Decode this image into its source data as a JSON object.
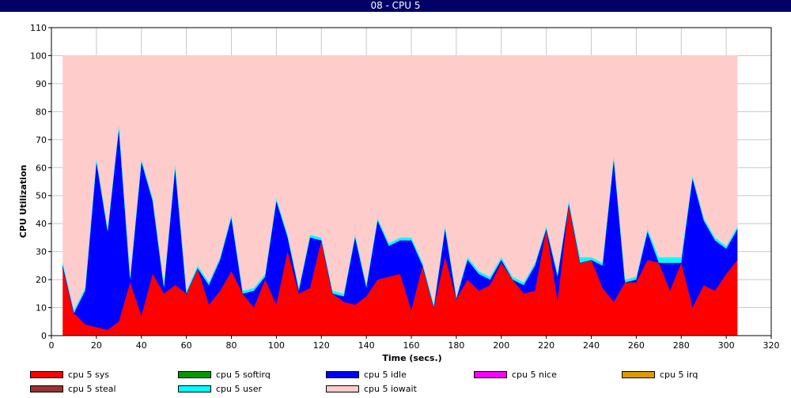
{
  "window": {
    "title": "08 - CPU 5"
  },
  "chart_data": {
    "type": "area",
    "stacked": true,
    "title": "",
    "xlabel": "Time (secs.)",
    "ylabel": "CPU Utilization",
    "xlim": [
      0,
      320
    ],
    "ylim": [
      0,
      110
    ],
    "xticks": [
      0,
      20,
      40,
      60,
      80,
      100,
      120,
      140,
      160,
      180,
      200,
      220,
      240,
      260,
      280,
      300,
      320
    ],
    "yticks": [
      0,
      10,
      20,
      30,
      40,
      50,
      60,
      70,
      80,
      90,
      100,
      110
    ],
    "grid": true,
    "legend_position": "bottom",
    "x": [
      5,
      10,
      15,
      20,
      25,
      30,
      35,
      40,
      45,
      50,
      55,
      60,
      65,
      70,
      75,
      80,
      85,
      90,
      95,
      100,
      105,
      110,
      115,
      120,
      125,
      130,
      135,
      140,
      145,
      150,
      155,
      160,
      165,
      170,
      175,
      180,
      185,
      190,
      195,
      200,
      205,
      210,
      215,
      220,
      225,
      230,
      235,
      240,
      245,
      250,
      255,
      260,
      265,
      270,
      275,
      280,
      285,
      290,
      295,
      300,
      305
    ],
    "series": [
      {
        "name": "cpu 5 sys",
        "color": "#ff0000",
        "values": [
          24,
          8,
          4,
          3,
          2,
          5,
          19,
          7,
          22,
          15,
          18,
          15,
          24,
          11,
          16,
          23,
          15,
          10,
          20,
          11,
          30,
          15,
          17,
          34,
          15,
          12,
          11,
          14,
          20,
          21,
          22,
          9,
          25,
          10,
          28,
          13,
          20,
          16,
          18,
          26,
          20,
          15,
          16,
          38,
          12,
          47,
          26,
          27,
          17,
          12,
          19,
          19,
          27,
          26,
          16,
          26,
          10,
          18,
          16,
          22,
          27
        ]
      },
      {
        "name": "cpu 5 softirq",
        "color": "#009900",
        "values": [
          0,
          0,
          0,
          0,
          0,
          0,
          0,
          0,
          0,
          0,
          0,
          0,
          0,
          0,
          0,
          0,
          0,
          0,
          0,
          0,
          0,
          0,
          0,
          0,
          0,
          0,
          0,
          0,
          0,
          0,
          0,
          0,
          0,
          0,
          0,
          0,
          0,
          0,
          0,
          0,
          0,
          0,
          0,
          0,
          0,
          0,
          0,
          0,
          0,
          0,
          0,
          0,
          0,
          0,
          0,
          0,
          0,
          0,
          0,
          0,
          0
        ]
      },
      {
        "name": "cpu 5 idle",
        "color": "#0000ff",
        "values": [
          1,
          0,
          12,
          59,
          35,
          69,
          1,
          55,
          26,
          2,
          42,
          0,
          0,
          7,
          11,
          19,
          0,
          6,
          1,
          37,
          5,
          1,
          18,
          0,
          0,
          2,
          24,
          3,
          21,
          11,
          12,
          25,
          0,
          0,
          10,
          0,
          7,
          6,
          2,
          1,
          0,
          3,
          9,
          0,
          9,
          0,
          0,
          0,
          8,
          51,
          0,
          1,
          10,
          0,
          10,
          0,
          46,
          23,
          18,
          9,
          11
        ]
      },
      {
        "name": "cpu 5 nice",
        "color": "#ff00ff",
        "values": [
          0,
          0,
          0,
          0,
          0,
          0,
          0,
          0,
          0,
          0,
          0,
          0,
          0,
          0,
          0,
          0,
          0,
          0,
          0,
          0,
          0,
          0,
          0,
          0,
          0,
          0,
          0,
          0,
          0,
          0,
          0,
          0,
          0,
          0,
          0,
          0,
          0,
          0,
          0,
          0,
          0,
          0,
          0,
          0,
          0,
          0,
          0,
          0,
          0,
          0,
          0,
          0,
          0,
          0,
          0,
          0,
          0,
          0,
          0,
          0,
          0
        ]
      },
      {
        "name": "cpu 5 irq",
        "color": "#dd9900",
        "values": [
          0,
          0,
          0,
          0,
          0,
          0,
          0,
          0,
          0,
          0,
          0,
          0,
          0,
          0,
          0,
          0,
          0,
          0,
          0,
          0,
          0,
          0,
          0,
          0,
          0,
          0,
          0,
          0,
          0,
          0,
          0,
          0,
          0,
          0,
          0,
          0,
          0,
          0,
          0,
          0,
          0,
          0,
          0,
          0,
          0,
          0,
          0,
          0,
          0,
          0,
          0,
          0,
          0,
          0,
          0,
          0,
          0,
          0,
          0,
          0,
          0
        ]
      },
      {
        "name": "cpu 5 steal",
        "color": "#993333",
        "values": [
          0,
          0,
          0,
          0,
          0,
          0,
          0,
          0,
          0,
          0,
          0,
          0,
          0,
          0,
          0,
          0,
          0,
          0,
          0,
          0,
          0,
          0,
          0,
          0,
          0,
          0,
          0,
          0,
          0,
          0,
          0,
          0,
          0,
          0,
          0,
          0,
          0,
          0,
          0,
          0,
          0,
          0,
          0,
          0,
          0,
          0,
          0,
          0,
          0,
          0,
          0,
          0,
          0,
          0,
          0,
          0,
          0,
          0,
          0,
          0,
          0
        ]
      },
      {
        "name": "cpu 5 user",
        "color": "#00ffff",
        "values": [
          1,
          1,
          1,
          1,
          1,
          1,
          1,
          1,
          1,
          1,
          1,
          1,
          1,
          1,
          1,
          1,
          1,
          1,
          1,
          1,
          1,
          1,
          1,
          1,
          1,
          1,
          1,
          1,
          1,
          1,
          1,
          1,
          1,
          1,
          1,
          1,
          1,
          1,
          1,
          1,
          1,
          1,
          1,
          1,
          1,
          1,
          2,
          1,
          1,
          1,
          1,
          1,
          1,
          2,
          2,
          2,
          1,
          1,
          1,
          1,
          1
        ]
      },
      {
        "name": "cpu 5 iowait",
        "color": "#ffcccc",
        "values": [
          74,
          91,
          83,
          37,
          62,
          25,
          79,
          37,
          51,
          82,
          39,
          84,
          75,
          81,
          72,
          57,
          84,
          83,
          78,
          51,
          64,
          83,
          64,
          65,
          84,
          85,
          64,
          82,
          58,
          67,
          65,
          65,
          74,
          89,
          61,
          86,
          72,
          77,
          79,
          72,
          79,
          81,
          74,
          61,
          78,
          52,
          72,
          72,
          74,
          36,
          80,
          79,
          62,
          72,
          72,
          72,
          43,
          58,
          65,
          68,
          61
        ]
      }
    ]
  },
  "legend": {
    "items": [
      {
        "label": "cpu 5 sys",
        "color": "#ff0000"
      },
      {
        "label": "cpu 5 softirq",
        "color": "#009900"
      },
      {
        "label": "cpu 5 idle",
        "color": "#0000ff"
      },
      {
        "label": "cpu 5 nice",
        "color": "#ff00ff"
      },
      {
        "label": "cpu 5 irq",
        "color": "#dd9900"
      },
      {
        "label": "cpu 5 steal",
        "color": "#993333"
      },
      {
        "label": "cpu 5 user",
        "color": "#00ffff"
      },
      {
        "label": "cpu 5 iowait",
        "color": "#ffcccc"
      }
    ]
  }
}
